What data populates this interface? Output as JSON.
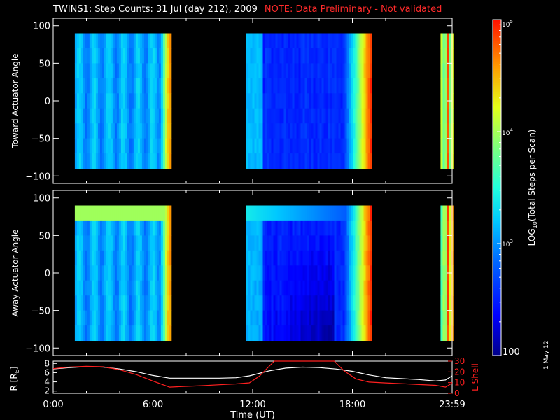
{
  "chart_data": [
    {
      "type": "heatmap",
      "title": "TWINS1: Step Counts: 31 Jul (day 212), 2009",
      "note": "NOTE: Data Preliminary - Not validated",
      "ylabel": "Toward Actuator Angle",
      "ylim": [
        -110,
        110
      ],
      "y_ticks": [
        "100",
        "50",
        "0",
        "−50",
        "−100"
      ],
      "y_tick_values": [
        100,
        50,
        0,
        -50,
        -100
      ],
      "xlim_hours": [
        0,
        24
      ],
      "angle_range": [
        -90,
        90
      ],
      "data_blocks_hours": [
        [
          1.3,
          7.0
        ],
        [
          11.6,
          19.1
        ],
        [
          23.3,
          24.0
        ]
      ]
    },
    {
      "type": "heatmap",
      "ylabel": "Away Actuator Angle",
      "ylim": [
        -110,
        110
      ],
      "y_ticks": [
        "100",
        "50",
        "0",
        "−50",
        "−100"
      ],
      "y_tick_values": [
        100,
        50,
        0,
        -50,
        -100
      ],
      "xlim_hours": [
        0,
        24
      ],
      "angle_range": [
        -90,
        90
      ],
      "data_blocks_hours": [
        [
          1.3,
          7.0
        ],
        [
          11.6,
          19.1
        ],
        [
          23.3,
          24.0
        ]
      ]
    },
    {
      "type": "line",
      "xlabel": "Time (UT)",
      "ylabel_left": "R [R",
      "ylabel_left_sub": "E",
      "ylabel_left_end": "]",
      "ylabel_right": "L Shell",
      "left_ticks": [
        "8",
        "6",
        "4",
        "2"
      ],
      "left_tick_values": [
        8,
        6,
        4,
        2
      ],
      "right_ticks": [
        "30",
        "20",
        "10",
        "0"
      ],
      "right_tick_values": [
        30,
        20,
        10,
        0
      ],
      "left_ylim": [
        1.5,
        8.5
      ],
      "right_ylim": [
        0,
        30
      ],
      "x_ticks": [
        "0:00",
        "6:00",
        "12:00",
        "18:00",
        "23:59"
      ],
      "x_tick_values": [
        0,
        6,
        12,
        18,
        24
      ],
      "series": [
        {
          "name": "R",
          "color": "#ffffff",
          "x": [
            0.0,
            1.0,
            2.0,
            3.0,
            4.0,
            5.0,
            6.0,
            7.0,
            8.0,
            9.0,
            10.0,
            11.0,
            11.8,
            13.0,
            14.0,
            15.0,
            16.0,
            17.0,
            18.0,
            19.0,
            20.0,
            21.0,
            22.0,
            23.0,
            23.6,
            24.0
          ],
          "values": [
            6.8,
            7.1,
            7.3,
            7.2,
            6.8,
            6.2,
            5.4,
            4.8,
            4.8,
            4.8,
            4.8,
            4.9,
            5.3,
            6.4,
            7.0,
            7.2,
            7.1,
            6.8,
            6.3,
            5.5,
            4.9,
            4.7,
            4.5,
            4.2,
            4.4,
            5.3
          ]
        },
        {
          "name": "L Shell",
          "color": "#ff2020",
          "x": [
            0.0,
            1.0,
            2.0,
            3.0,
            4.0,
            5.0,
            6.0,
            7.0,
            8.0,
            9.0,
            10.0,
            11.0,
            11.8,
            12.4,
            13.3,
            16.9,
            17.5,
            18.2,
            19.0,
            20.0,
            21.0,
            22.0,
            23.0,
            23.6,
            24.0
          ],
          "values": [
            23,
            24.5,
            25.2,
            24.8,
            22,
            17.5,
            11.5,
            5.8,
            6.5,
            7.2,
            8.0,
            8.8,
            9.8,
            16.0,
            30.0,
            30.0,
            21.0,
            13.5,
            10.5,
            9.7,
            9.0,
            8.2,
            7.5,
            5.8,
            9.5
          ]
        }
      ]
    },
    {
      "type": "colorbar",
      "label_pre": "LOG",
      "label_sub": "10",
      "label_post": "(Total Steps per Scan)",
      "tick_100": "100",
      "tick_1e3_base": "10",
      "tick_1e3_exp": "3",
      "tick_1e4_base": "10",
      "tick_1e4_exp": "4",
      "tick_1e5_base": "10",
      "tick_1e5_exp": "5",
      "range_log10": [
        2,
        5
      ]
    }
  ],
  "date_stamp": "1 May 12"
}
